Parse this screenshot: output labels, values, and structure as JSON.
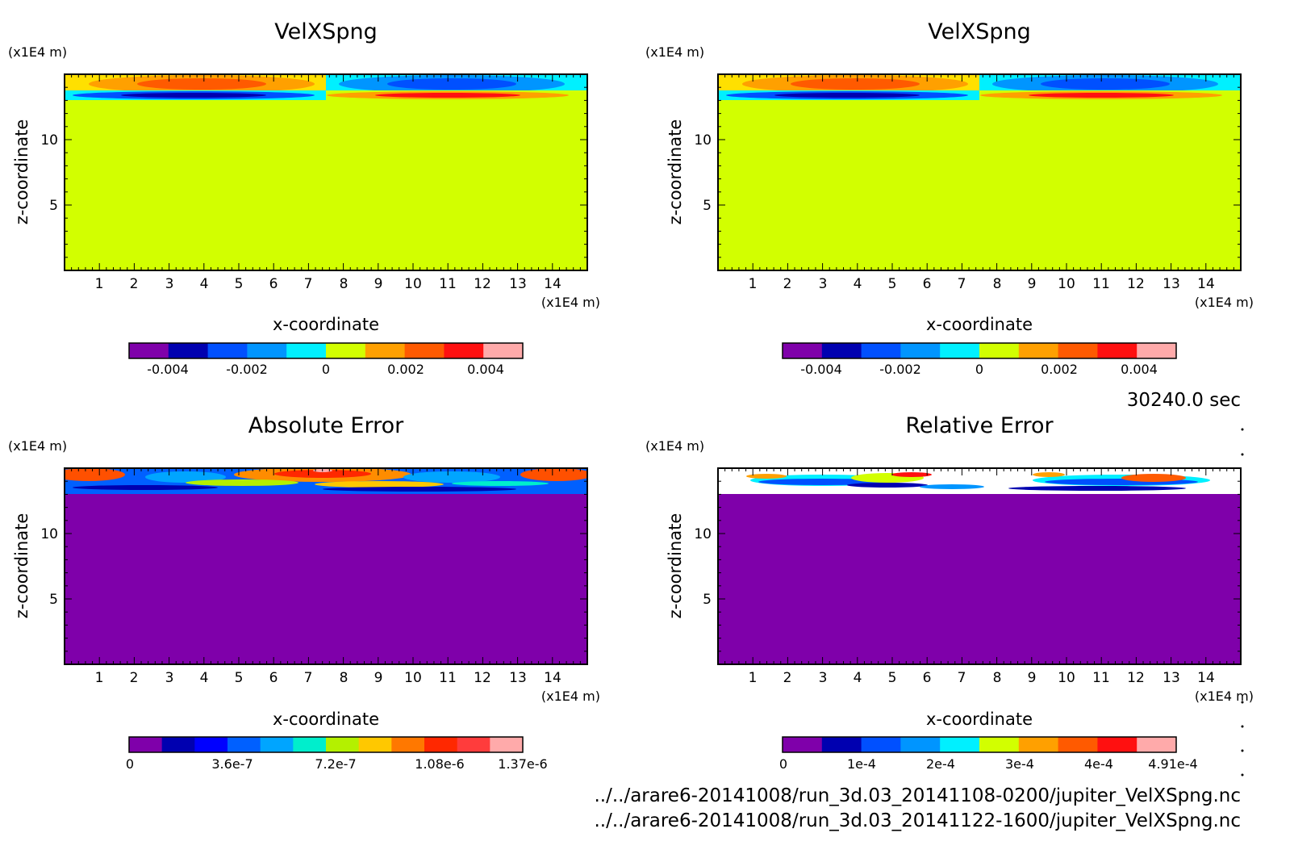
{
  "chart_data": [
    {
      "type": "heatmap",
      "title": "VelXSpng",
      "xlabel": "x-coordinate",
      "ylabel": "z-coordinate",
      "x_unit": "(x1E4 m)",
      "y_unit": "(x1E4 m)",
      "x_ticks": [
        "1",
        "2",
        "3",
        "4",
        "5",
        "6",
        "7",
        "8",
        "9",
        "10",
        "11",
        "12",
        "13",
        "14"
      ],
      "y_ticks": [
        "5",
        "10"
      ],
      "xlim": [
        0,
        15
      ],
      "ylim": [
        0,
        15
      ],
      "colorbar": {
        "labels": [
          "-0.004",
          "-0.002",
          "0",
          "0.002",
          "0.004"
        ],
        "range": [
          -0.005,
          0.005
        ],
        "colors": [
          "#7f00aa",
          "#0000b0",
          "#0050ff",
          "#0095ff",
          "#00f0ff",
          "#d2ff00",
          "#ffa000",
          "#ff5a00",
          "#ff1010",
          "#ffaaaa"
        ]
      },
      "field_summary": "near zero (0 bin) for z < 13; positive values on the left half and negative on the right half of the top layer (z 13-14.5), reversed sign in a thin band just below"
    },
    {
      "type": "heatmap",
      "title": "VelXSpng",
      "xlabel": "x-coordinate",
      "ylabel": "z-coordinate",
      "x_unit": "(x1E4 m)",
      "y_unit": "(x1E4 m)",
      "x_ticks": [
        "1",
        "2",
        "3",
        "4",
        "5",
        "6",
        "7",
        "8",
        "9",
        "10",
        "11",
        "12",
        "13",
        "14"
      ],
      "y_ticks": [
        "5",
        "10"
      ],
      "xlim": [
        0,
        15
      ],
      "ylim": [
        0,
        15
      ],
      "colorbar": {
        "labels": [
          "-0.004",
          "-0.002",
          "0",
          "0.002",
          "0.004"
        ],
        "range": [
          -0.005,
          0.005
        ],
        "colors": [
          "#7f00aa",
          "#0000b0",
          "#0050ff",
          "#0095ff",
          "#00f0ff",
          "#d2ff00",
          "#ffa000",
          "#ff5a00",
          "#ff1010",
          "#ffaaaa"
        ]
      },
      "field_summary": "identical to the first panel"
    },
    {
      "type": "heatmap",
      "title": "Absolute Error",
      "xlabel": "x-coordinate",
      "ylabel": "z-coordinate",
      "x_unit": "(x1E4 m)",
      "y_unit": "(x1E4 m)",
      "x_ticks": [
        "1",
        "2",
        "3",
        "4",
        "5",
        "6",
        "7",
        "8",
        "9",
        "10",
        "11",
        "12",
        "13",
        "14"
      ],
      "y_ticks": [
        "5",
        "10"
      ],
      "xlim": [
        0,
        15
      ],
      "ylim": [
        0,
        15
      ],
      "colorbar": {
        "labels": [
          "0",
          "3.6e-7",
          "7.2e-7",
          "1.08e-6",
          "1.37e-6"
        ],
        "range": [
          0,
          1.37e-06
        ],
        "colors": [
          "#7f00aa",
          "#0000b0",
          "#0000ff",
          "#0060ff",
          "#00a5ff",
          "#00eecc",
          "#b4f000",
          "#ffc800",
          "#ff7800",
          "#ff2800",
          "#ff3c3c",
          "#ffaaaa"
        ]
      },
      "field_summary": "zero for z < 13; errors up to about 1.3e-6 in the top layer"
    },
    {
      "type": "heatmap",
      "title": "Relative Error",
      "xlabel": "x-coordinate",
      "ylabel": "z-coordinate",
      "x_unit": "(x1E4 m)",
      "y_unit": "(x1E4 m)",
      "x_ticks": [
        "1",
        "2",
        "3",
        "4",
        "5",
        "6",
        "7",
        "8",
        "9",
        "10",
        "11",
        "12",
        "13",
        "14"
      ],
      "y_ticks": [
        "5",
        "10"
      ],
      "xlim": [
        0,
        15
      ],
      "ylim": [
        0,
        15
      ],
      "colorbar": {
        "labels": [
          "0",
          "1e-4",
          "2e-4",
          "3e-4",
          "4e-4",
          "4.91e-4"
        ],
        "range": [
          0,
          0.000491
        ],
        "colors": [
          "#7f00aa",
          "#0000b0",
          "#0050ff",
          "#0095ff",
          "#00f0ff",
          "#d2ff00",
          "#ffa000",
          "#ff5a00",
          "#ff1010",
          "#ffaaaa"
        ]
      },
      "field_summary": "zero for z < 13; undefined (white) areas and scattered values up to 4.91e-4 in the top layer"
    }
  ],
  "time_label": "30240.0 sec",
  "file_paths": [
    "../../arare6-20141008/run_3d.03_20141108-0200/jupiter_VelXSpng.nc",
    "../../arare6-20141008/run_3d.03_20141122-1600/jupiter_VelXSpng.nc"
  ]
}
